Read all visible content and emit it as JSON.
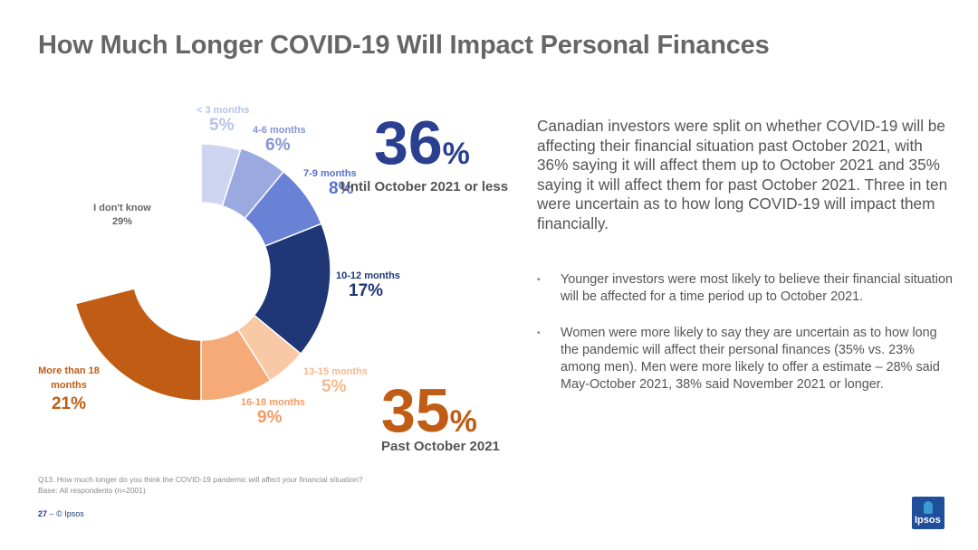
{
  "title": "How Much Longer COVID-19 Will Impact Personal Finances",
  "chart_data": {
    "type": "pie",
    "variant": "donut",
    "segments": [
      {
        "label": "< 3 months",
        "value": 5,
        "display": "5%",
        "color": "#cdd5f0"
      },
      {
        "label": "4-6 months",
        "value": 6,
        "display": "6%",
        "color": "#9aa9e0"
      },
      {
        "label": "7-9 months",
        "value": 8,
        "display": "8%",
        "color": "#6a82d6"
      },
      {
        "label": "10-12 months",
        "value": 17,
        "display": "17%",
        "color": "#1f3777"
      },
      {
        "label": "13-15 months",
        "value": 5,
        "display": "5%",
        "color": "#f9c9a6"
      },
      {
        "label": "16-18 months",
        "value": 9,
        "display": "9%",
        "color": "#f5aa78"
      },
      {
        "label": "More than 18 months",
        "value": 21,
        "display": "21%",
        "color": "#c05c14"
      },
      {
        "label": "I don't know",
        "value": 29,
        "display": "29%",
        "color": "#ffffff"
      }
    ],
    "callouts": [
      {
        "number": "36",
        "symbol": "%",
        "caption": "Until October 2021 or less",
        "color": "#2a3f8f"
      },
      {
        "number": "35",
        "symbol": "%",
        "caption": "Past October 2021",
        "color": "#c05c14"
      }
    ]
  },
  "summary": "Canadian investors were split on whether COVID-19 will be affecting their financial situation past October 2021, with 36% saying it will affect them up to October 2021 and 35% saying it will affect them for past October 2021.  Three in ten were uncertain as to how long COVID-19 will impact them financially.",
  "bullets": [
    {
      "marker": "•",
      "text": "Younger investors were most likely to believe their financial situation will be affected for a time period up to October 2021."
    },
    {
      "marker": "•",
      "text": "Women were more likely to say they are uncertain as to how long the pandemic will affect their personal finances (35% vs. 23% among men). Men were more likely to offer a estimate – 28% said May-October 2021, 38% said November 2021 or longer."
    }
  ],
  "footnote": {
    "question": "Q13. How much longer do you think the COVID-19 pandemic will affect your financial situation?",
    "base": "Base: All respondents (n=2001)"
  },
  "footer": {
    "page": "27",
    "separator": "–",
    "copyright": "© Ipsos"
  },
  "logo": {
    "text": "Ipsos",
    "color": "#1f4e9a"
  }
}
